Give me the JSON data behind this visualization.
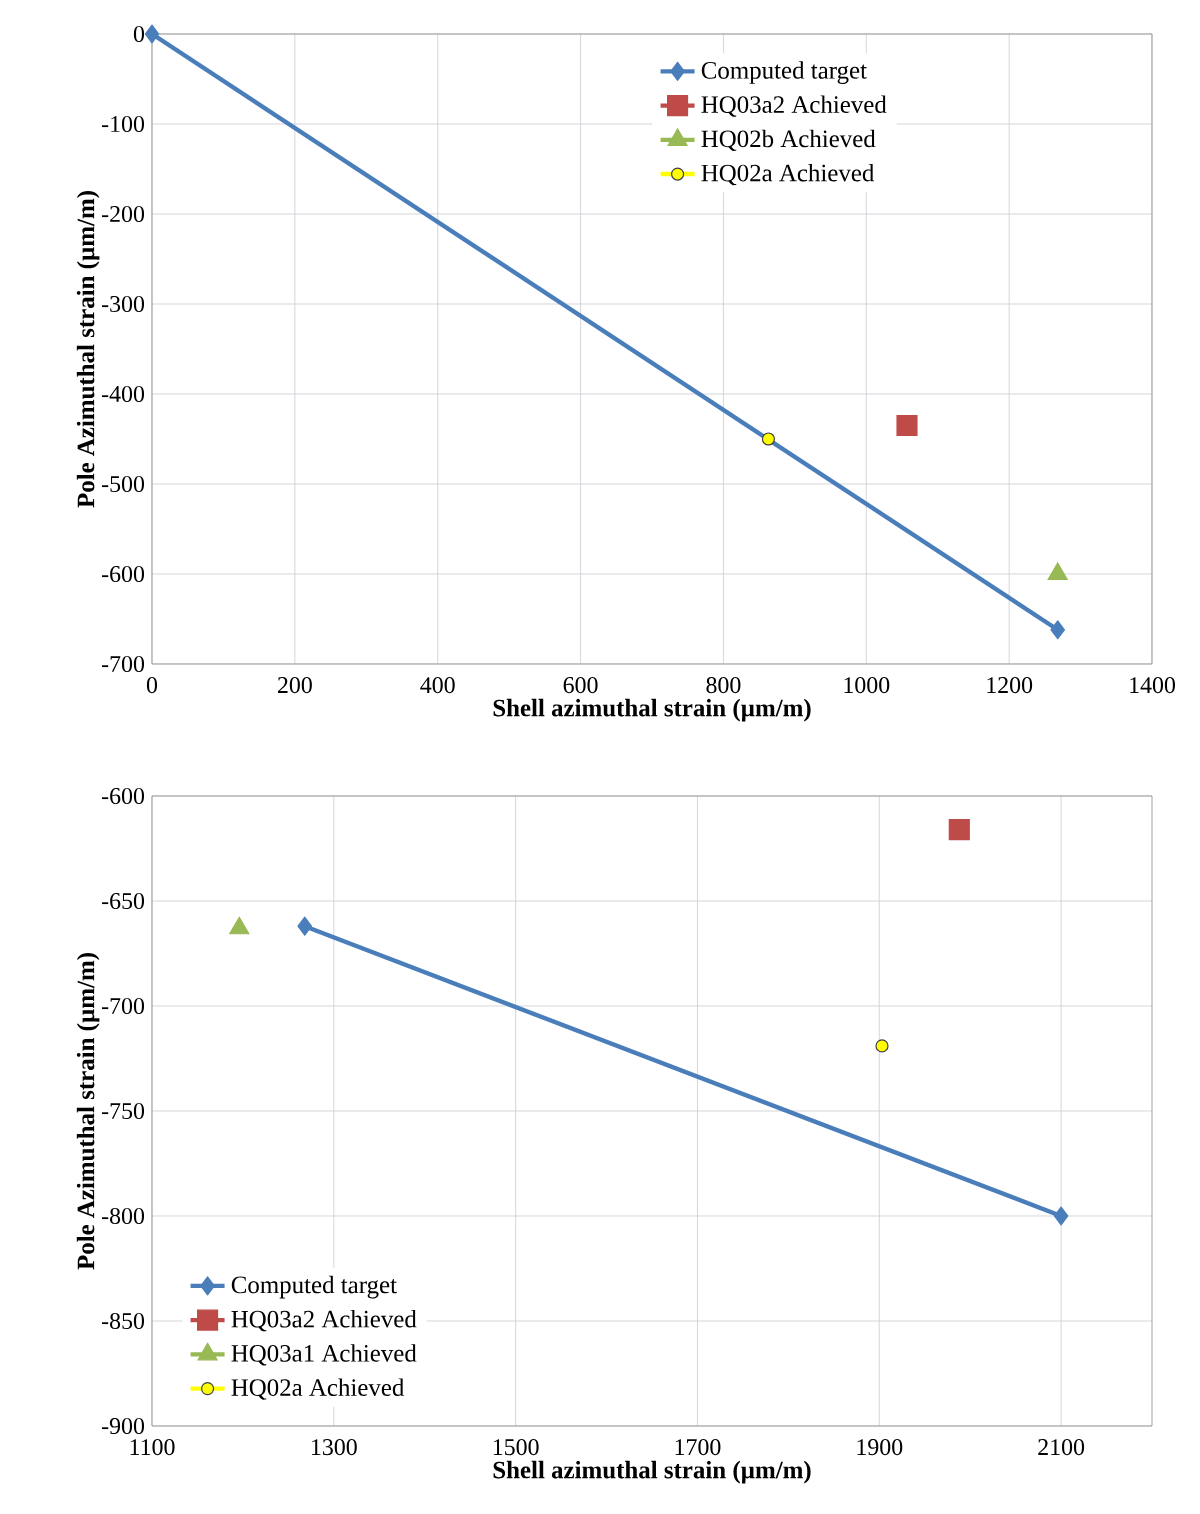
{
  "chart_data": [
    {
      "type": "scatter",
      "xlabel": "Shell azimuthal strain (µm/m)",
      "ylabel": "Pole Azimuthal strain (µm/m)",
      "xlim": [
        0,
        1400
      ],
      "xticks": [
        0,
        200,
        400,
        600,
        800,
        1000,
        1200,
        1400
      ],
      "ylim": [
        -700,
        0
      ],
      "yticks": [
        -700,
        -600,
        -500,
        -400,
        -300,
        -200,
        -100,
        0
      ],
      "grid": true,
      "legend": "top right",
      "series": [
        {
          "name": "Computed target",
          "type": "line",
          "color": "#4a7ebb",
          "marker": "diamond",
          "x": [
            0,
            1268
          ],
          "values": [
            0,
            -662
          ]
        },
        {
          "name": "HQ03a2 Achieved",
          "color": "#be4b48",
          "marker": "square",
          "x": [
            1057
          ],
          "values": [
            -435
          ]
        },
        {
          "name": "HQ02b Achieved",
          "color": "#98b954",
          "marker": "triangle",
          "x": [
            1268
          ],
          "values": [
            -600
          ]
        },
        {
          "name": "HQ02a Achieved",
          "color": "#ffff00",
          "marker": "circle",
          "x": [
            863
          ],
          "values": [
            -450
          ]
        }
      ]
    },
    {
      "type": "scatter",
      "xlabel": "Shell azimuthal strain (µm/m)",
      "ylabel": "Pole Azimuthal strain (µm/m)",
      "xlim": [
        1100,
        2200
      ],
      "xticks": [
        1100,
        1300,
        1500,
        1700,
        1900,
        2100
      ],
      "ylim": [
        -900,
        -600
      ],
      "yticks": [
        -900,
        -850,
        -800,
        -750,
        -700,
        -650,
        -600
      ],
      "grid": true,
      "legend": "bottom left",
      "series": [
        {
          "name": "Computed target",
          "type": "line",
          "color": "#4a7ebb",
          "marker": "diamond",
          "x": [
            1268,
            2100
          ],
          "values": [
            -662,
            -800
          ]
        },
        {
          "name": "HQ03a2 Achieved",
          "color": "#be4b48",
          "marker": "square",
          "x": [
            1988
          ],
          "values": [
            -616
          ]
        },
        {
          "name": "HQ03a1 Achieved",
          "color": "#98b954",
          "marker": "triangle",
          "x": [
            1196
          ],
          "values": [
            -663
          ]
        },
        {
          "name": "HQ02a Achieved",
          "color": "#ffff00",
          "marker": "circle",
          "x": [
            1903
          ],
          "values": [
            -719
          ]
        }
      ]
    }
  ]
}
